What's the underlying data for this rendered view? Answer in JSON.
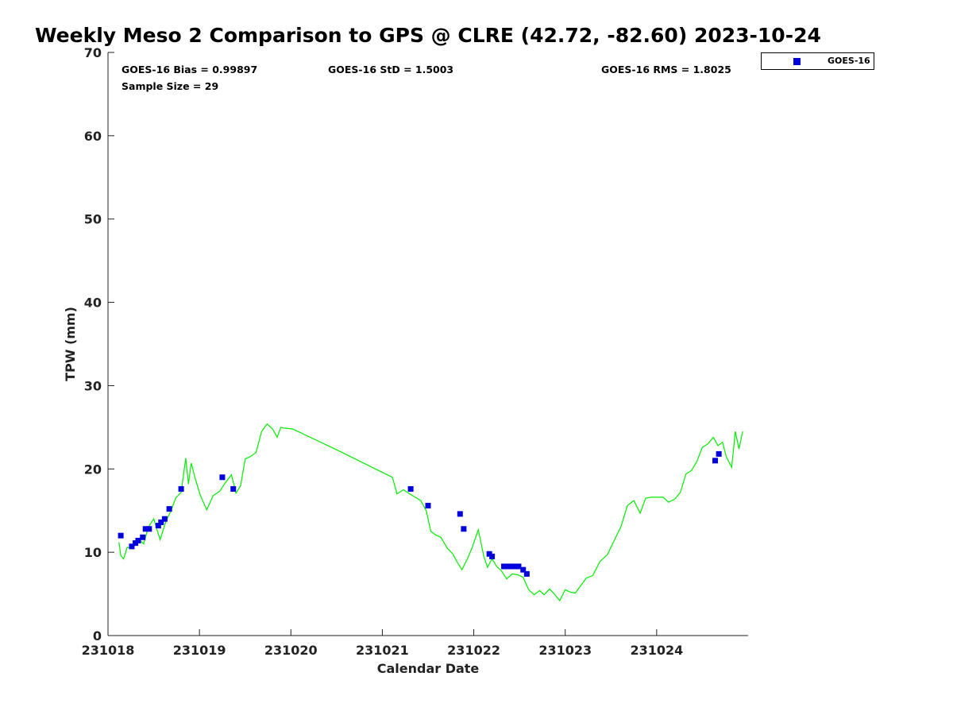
{
  "title": "Weekly Meso 2 Comparison to GPS @ CLRE (42.72, -82.60) 2023-10-24",
  "stats": {
    "bias": "GOES-16 Bias = 0.99897",
    "std": "GOES-16 StD = 1.5003",
    "rms": "GOES-16 RMS = 1.8025",
    "sample": "Sample Size = 29"
  },
  "legend": {
    "label": "GOES-16"
  },
  "colors": {
    "goes": "#0000dd",
    "gps": "#00ee00",
    "axis": "#222222"
  },
  "chart_data": {
    "type": "scatter",
    "xlabel": "Calendar Date",
    "ylabel": "TPW (mm)",
    "xlim": [
      231018,
      231025
    ],
    "ylim": [
      0,
      70
    ],
    "xticks": [
      231018,
      231019,
      231020,
      231021,
      231022,
      231023,
      231024
    ],
    "xticklabels": [
      "231018",
      "231019",
      "231020",
      "231021",
      "231022",
      "231023",
      "231024"
    ],
    "yticks": [
      0,
      10,
      20,
      30,
      40,
      50,
      60,
      70
    ],
    "series": [
      {
        "name": "GOES-16",
        "style": "square-marker",
        "x": [
          231018.14,
          231018.26,
          231018.3,
          231018.33,
          231018.38,
          231018.41,
          231018.45,
          231018.55,
          231018.58,
          231018.62,
          231018.67,
          231018.8,
          231019.25,
          231019.37,
          231021.31,
          231021.5,
          231021.85,
          231021.89,
          231022.17,
          231022.2,
          231022.33,
          231022.37,
          231022.41,
          231022.45,
          231022.49,
          231022.54,
          231022.58,
          231024.64,
          231024.68
        ],
        "y": [
          12.0,
          10.7,
          11.1,
          11.4,
          11.8,
          12.8,
          12.8,
          13.2,
          13.6,
          14.0,
          15.2,
          17.6,
          19.0,
          17.6,
          17.6,
          15.6,
          14.6,
          12.8,
          9.8,
          9.5,
          8.3,
          8.3,
          8.3,
          8.3,
          8.3,
          7.9,
          7.4,
          21.0,
          21.8
        ]
      },
      {
        "style": "line",
        "x": [
          231018.12,
          231018.14,
          231018.17,
          231018.21,
          231018.27,
          231018.33,
          231018.39,
          231018.44,
          231018.5,
          231018.57,
          231018.63,
          231018.69,
          231018.74,
          231018.8,
          231018.85,
          231018.88,
          231018.91,
          231018.95,
          231019.01,
          231019.08,
          231019.15,
          231019.22,
          231019.28,
          231019.35,
          231019.4,
          231019.45,
          231019.5,
          231019.56,
          231019.62,
          231019.68,
          231019.74,
          231019.8,
          231019.85,
          231019.89,
          231019.93,
          231020.02,
          231020.5,
          231021.11,
          231021.16,
          231021.23,
          231021.3,
          231021.36,
          231021.42,
          231021.48,
          231021.53,
          231021.58,
          231021.64,
          231021.71,
          231021.77,
          231021.82,
          231021.87,
          231021.93,
          231021.98,
          231022.05,
          231022.11,
          231022.15,
          231022.2,
          231022.25,
          231022.3,
          231022.36,
          231022.42,
          231022.48,
          231022.54,
          231022.6,
          231022.66,
          231022.72,
          231022.77,
          231022.83,
          231022.88,
          231022.94,
          231023.0,
          231023.06,
          231023.11,
          231023.17,
          231023.23,
          231023.3,
          231023.38,
          231023.46,
          231023.54,
          231023.61,
          231023.68,
          231023.75,
          231023.82,
          231023.88,
          231023.94,
          231024.01,
          231024.07,
          231024.13,
          231024.2,
          231024.26,
          231024.32,
          231024.38,
          231024.44,
          231024.5,
          231024.56,
          231024.62,
          231024.67,
          231024.72,
          231024.76,
          231024.82,
          231024.86,
          231024.9,
          231024.94
        ],
        "y": [
          11.2,
          9.6,
          9.2,
          10.6,
          10.4,
          11.6,
          11.0,
          13.0,
          14.0,
          11.5,
          13.6,
          15.0,
          16.5,
          17.2,
          21.3,
          18.2,
          20.7,
          19.0,
          16.8,
          15.1,
          16.8,
          17.3,
          18.3,
          19.3,
          17.1,
          18.0,
          21.2,
          21.5,
          22.0,
          24.5,
          25.4,
          24.8,
          23.8,
          25.0,
          24.9,
          24.8,
          22.3,
          19.0,
          17.0,
          17.5,
          17.0,
          16.6,
          16.2,
          15.0,
          12.5,
          12.1,
          11.8,
          10.5,
          9.8,
          8.8,
          7.9,
          9.2,
          10.5,
          12.7,
          9.5,
          8.2,
          9.2,
          8.3,
          7.8,
          6.8,
          7.4,
          7.3,
          7.0,
          5.5,
          4.9,
          5.4,
          4.9,
          5.6,
          5.0,
          4.2,
          5.5,
          5.2,
          5.1,
          6.0,
          6.9,
          7.2,
          8.9,
          9.7,
          11.5,
          13.1,
          15.6,
          16.2,
          14.7,
          16.5,
          16.6,
          16.6,
          16.6,
          16.0,
          16.4,
          17.2,
          19.4,
          19.8,
          20.9,
          22.6,
          23.0,
          23.8,
          22.8,
          23.2,
          21.5,
          20.2,
          24.5,
          22.4,
          24.5
        ]
      }
    ]
  }
}
